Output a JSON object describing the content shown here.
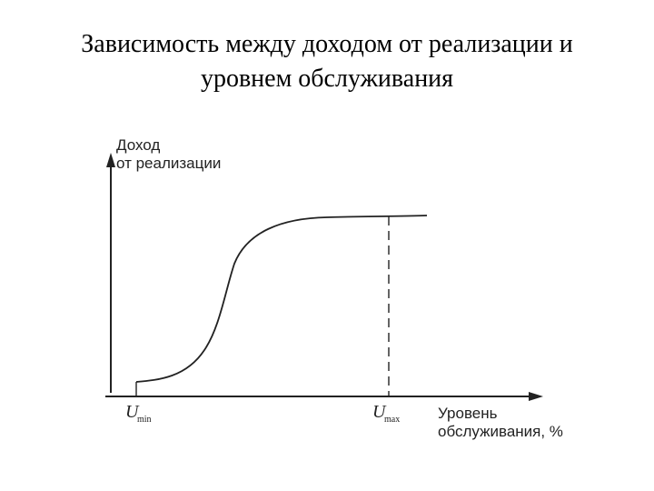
{
  "title": {
    "line1": "Зависимость между доходом от реализации и",
    "line2": "уровнем обслуживания"
  },
  "diagram": {
    "y_label_line1": "Доход",
    "y_label_line2": "от реализации",
    "x_label_line1": "Уровень",
    "x_label_line2": "обслуживания, %",
    "u_min_letter": "U",
    "u_min_sub": "min",
    "u_max_letter": "U",
    "u_max_sub": "max"
  },
  "colors": {
    "ink": "#222222",
    "background": "#ffffff"
  }
}
